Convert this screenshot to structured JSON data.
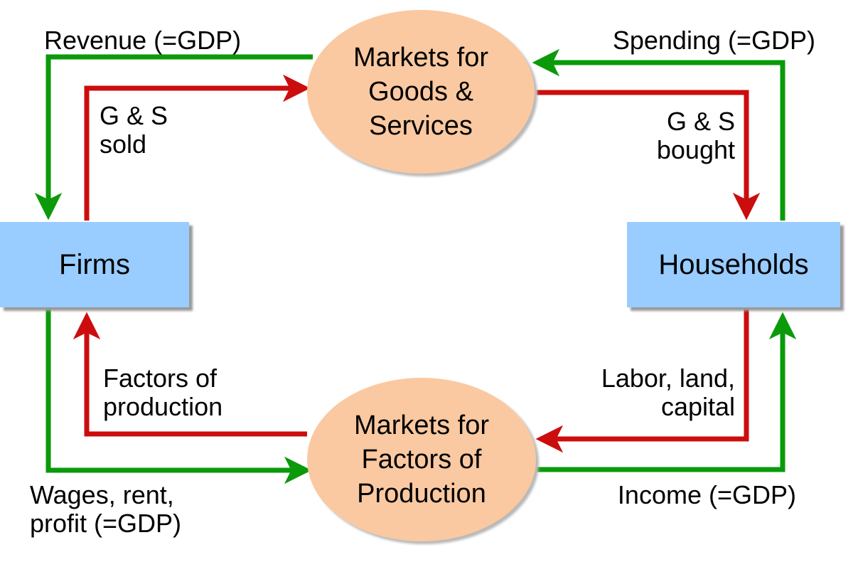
{
  "nodes": {
    "firms": "Firms",
    "households": "Households",
    "goods_market": [
      "Markets for",
      "Goods &",
      "Services"
    ],
    "factor_market": [
      "Markets for",
      "Factors of",
      "Production"
    ]
  },
  "labels": {
    "revenue": "Revenue (=GDP)",
    "spending": "Spending (=GDP)",
    "gs_sold": [
      "G & S",
      "sold"
    ],
    "gs_bought": [
      "G & S",
      "bought"
    ],
    "factors_of_production": [
      "Factors of",
      "production"
    ],
    "labor_land_capital": [
      "Labor, land,",
      "capital"
    ],
    "wages_rent_profit": [
      "Wages, rent,",
      "profit (=GDP)"
    ],
    "income": "Income (=GDP)"
  },
  "colors": {
    "money_flow": "#0a9a0a",
    "goods_flow": "#cc0d0d",
    "box_fill": "#99ccff",
    "oval_fill": "#fac9a1"
  }
}
